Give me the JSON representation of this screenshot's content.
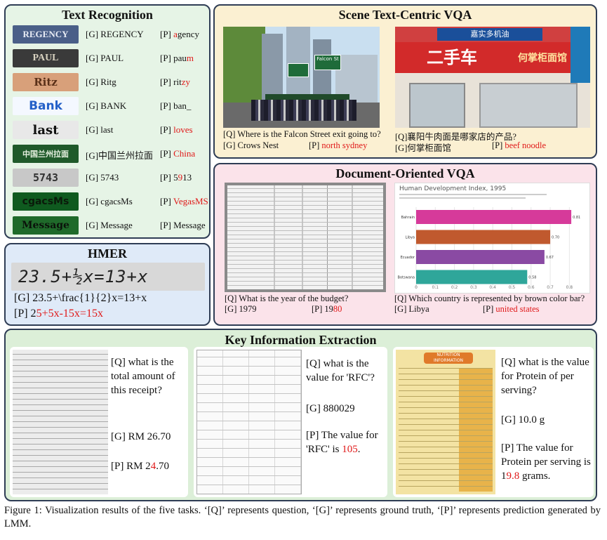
{
  "text_recognition": {
    "title": "Text Recognition",
    "rows": [
      {
        "img": "REGENCY",
        "g": "[G] REGENCY",
        "p_pre": "[P] ",
        "p_ok": "",
        "p_err": "a",
        "p_rest": "gency"
      },
      {
        "img": "PAUL",
        "g": "[G] PAUL",
        "p_pre": "[P] ",
        "p_ok": "pau",
        "p_err": "m",
        "p_rest": ""
      },
      {
        "img": "Ritz",
        "g": "[G] Ritg",
        "p_pre": "[P] ",
        "p_ok": "rit",
        "p_err": "zy",
        "p_rest": ""
      },
      {
        "img": "Bank",
        "g": "[G] BANK",
        "p_pre": "[P] ",
        "p_ok": "ban_",
        "p_err": "",
        "p_rest": ""
      },
      {
        "img": "last",
        "g": "[G] last",
        "p_pre": "[P] ",
        "p_ok": "",
        "p_err": "loves",
        "p_rest": ""
      },
      {
        "img": "中国兰州拉面",
        "g": "[G]中国兰州拉面",
        "p_pre": "[P] ",
        "p_ok": "",
        "p_err": "China",
        "p_rest": ""
      },
      {
        "img": "5743",
        "g": "[G] 5743",
        "p_pre": "[P] ",
        "p_ok": "5",
        "p_err": "9",
        "p_rest": "13"
      },
      {
        "img": "cgacsMs",
        "g": "[G] cgacsMs",
        "p_pre": "[P] ",
        "p_ok": "",
        "p_err": "VegasMS",
        "p_rest": ""
      },
      {
        "img": "Message",
        "g": "[G] Message",
        "p_pre": "[P] ",
        "p_ok": "Message",
        "p_err": "",
        "p_rest": ""
      }
    ]
  },
  "hmer": {
    "title": "HMER",
    "image_text": "23.5+½x=13+x",
    "g": "[G] 23.5+\\frac{1}{2}x=13+x",
    "p_pre": "[P] 2",
    "p_err": "5+5x-15x=15x"
  },
  "scene_vqa": {
    "title": "Scene Text-Centric VQA",
    "left": {
      "q": "[Q] Where is the Falcon Street exit going to?",
      "g": "[G] Crows Nest",
      "p_pre": "[P] ",
      "p_err": "north sydney",
      "sign": "Falcon St"
    },
    "right": {
      "q": "[Q]襄阳牛肉面是哪家店的产品?",
      "g": "[G]何掌柜面馆",
      "p_pre": "[P] ",
      "p_err": "beef noodle",
      "sign_main": "二手车",
      "sign_right": "何掌柜面馆",
      "sign_top": "嘉实多机油"
    }
  },
  "doc_vqa": {
    "title": "Document-Oriented VQA",
    "left": {
      "q": "[Q] What is the year of the budget?",
      "g": "[G] 1979",
      "p_pre": "[P] 19",
      "p_err": "80"
    },
    "right": {
      "q": "[Q] Which country is represented by brown color bar?",
      "g": "[G] Libya",
      "p_pre": "[P] ",
      "p_err": "united states",
      "chart_title": "Human Development Index, 1995"
    }
  },
  "chart_data": {
    "type": "bar",
    "title": "Human Development Index, 1995",
    "categories": [
      "Bahrain",
      "Libya",
      "Ecuador",
      "Botswana"
    ],
    "values": [
      0.81,
      0.7,
      0.67,
      0.58
    ],
    "colors": [
      "#d63a9a",
      "#c0592e",
      "#8a4aa3",
      "#2fa69a"
    ],
    "xlim": [
      0,
      0.85
    ],
    "ticks": [
      "0",
      "0.1",
      "0.2",
      "0.3",
      "0.4",
      "0.5",
      "0.6",
      "0.7",
      "0.8"
    ]
  },
  "kie": {
    "title": "Key Information Extraction",
    "a": {
      "q": "[Q] what is the total amount of this receipt?",
      "g": "[G] RM 26.70",
      "p_pre": "[P] RM 2",
      "p_err": "4",
      "p_rest": ".70"
    },
    "b": {
      "q": "[Q] what is the value for 'RFC'?",
      "g": "[G] 880029",
      "p_pre": "[P] The value for 'RFC' is ",
      "p_err": "105",
      "p_rest": "."
    },
    "c": {
      "q": "[Q] what is the value for Protein of per serving?",
      "g": "[G] 10.0 g",
      "p_pre": "[P] The value for Protein per serving is 1",
      "p_err": "9.8",
      "p_rest": " grams.",
      "label_head": "NUTRITION INFORMATION"
    }
  },
  "caption": "Figure 1: Visualization results of the five tasks. ‘[Q]’ represents question, ‘[G]’ represents ground truth, ‘[P]’ represents prediction generated by LMM."
}
